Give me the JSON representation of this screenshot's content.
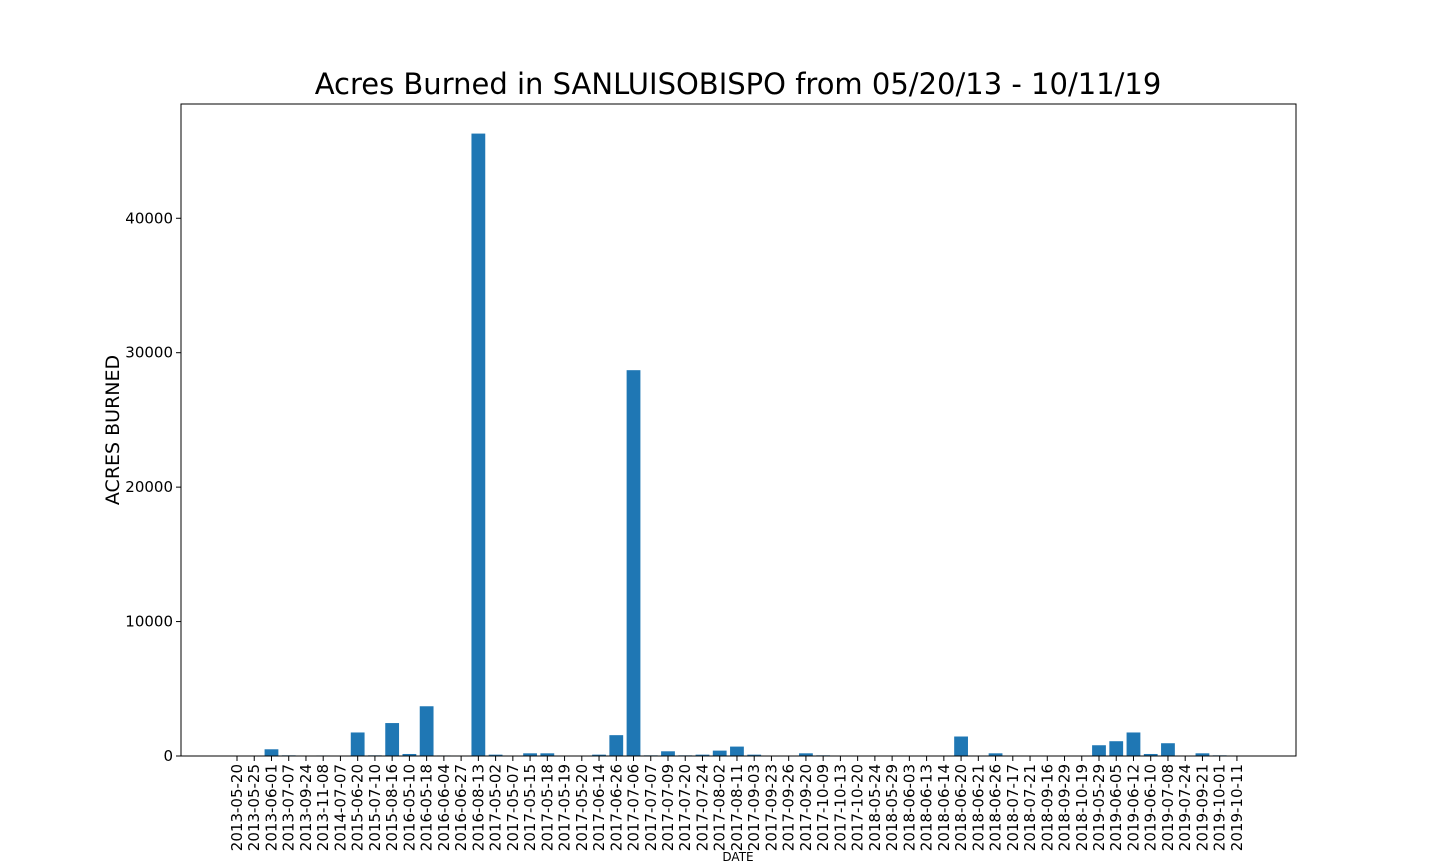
{
  "chart_data": {
    "type": "bar",
    "title": "Acres Burned in SANLUISOBISPO from 05/20/13 - 10/11/19",
    "xlabel": "DATE",
    "ylabel": "ACRES BURNED",
    "ylim": [
      0,
      48500
    ],
    "yticks": [
      0,
      10000,
      20000,
      30000,
      40000
    ],
    "grid": false,
    "bar_color": "#1f77b4",
    "categories": [
      "2013-05-20",
      "2013-05-25",
      "2013-06-01",
      "2013-07-07",
      "2013-09-24",
      "2013-11-08",
      "2014-07-07",
      "2015-06-20",
      "2015-07-10",
      "2015-08-16",
      "2016-05-10",
      "2016-05-18",
      "2016-06-04",
      "2016-06-27",
      "2016-08-13",
      "2017-05-02",
      "2017-05-07",
      "2017-05-15",
      "2017-05-18",
      "2017-05-19",
      "2017-05-20",
      "2017-06-14",
      "2017-06-26",
      "2017-07-06",
      "2017-07-07",
      "2017-07-09",
      "2017-07-20",
      "2017-07-24",
      "2017-08-02",
      "2017-08-11",
      "2017-09-03",
      "2017-09-23",
      "2017-09-26",
      "2017-09-20",
      "2017-10-09",
      "2017-10-13",
      "2017-10-20",
      "2018-05-24",
      "2018-05-29",
      "2018-06-03",
      "2018-06-13",
      "2018-06-14",
      "2018-06-20",
      "2018-06-21",
      "2018-06-26",
      "2018-07-17",
      "2018-07-21",
      "2018-09-16",
      "2018-09-29",
      "2018-10-19",
      "2019-05-29",
      "2019-06-05",
      "2019-06-12",
      "2019-06-10",
      "2019-07-08",
      "2019-07-24",
      "2019-09-21",
      "2019-10-01",
      "2019-10-11"
    ],
    "values": [
      10,
      20,
      500,
      50,
      30,
      40,
      30,
      1750,
      50,
      2450,
      150,
      3700,
      40,
      20,
      46300,
      100,
      20,
      200,
      200,
      10,
      10,
      100,
      1550,
      28700,
      50,
      350,
      50,
      100,
      400,
      700,
      100,
      10,
      30,
      200,
      50,
      30,
      10,
      30,
      10,
      10,
      30,
      30,
      1450,
      10,
      200,
      10,
      10,
      30,
      30,
      30,
      800,
      1100,
      1750,
      150,
      950,
      30,
      200,
      50,
      10
    ]
  }
}
